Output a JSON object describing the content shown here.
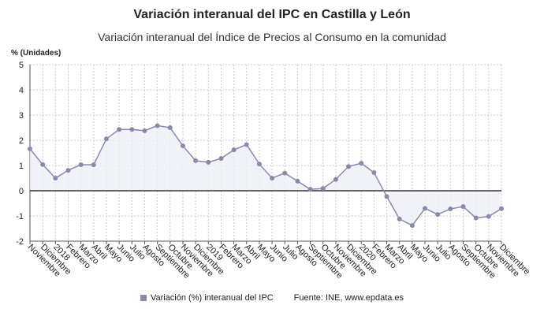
{
  "chart_data": {
    "type": "line",
    "title": "Variación interanual del IPC en Castilla y León",
    "subtitle": "Variación interanual del Índice de Precios al Consumo en la comunidad",
    "ylabel": "% (Unidades)",
    "xlabel": "",
    "ylim": [
      -2,
      5
    ],
    "yticks": [
      -2,
      -1,
      0,
      1,
      2,
      3,
      4,
      5
    ],
    "grid": true,
    "legend_position": "bottom",
    "categories": [
      "Noviembre",
      "Diciembre",
      "2018",
      "Febrero",
      "Marzo",
      "Abril",
      "Mayo",
      "Junio",
      "Julio",
      "Agosto",
      "Septiembre",
      "Octubre",
      "Noviembre",
      "Diciembre",
      "2019",
      "Febrero",
      "Marzo",
      "Abril",
      "Mayo",
      "Junio",
      "Julio",
      "Agosto",
      "Septiembre",
      "Octubre",
      "Noviembre",
      "Diciembre",
      "2020",
      "Febrero",
      "Marzo",
      "Abril",
      "Mayo",
      "Junio",
      "Julio",
      "Agosto",
      "Septiembre",
      "Octubre",
      "Noviembre",
      "Diciembre"
    ],
    "series": [
      {
        "name": "Variación (%) interanual del IPC",
        "color": "#8a8aa8",
        "values": [
          1.66,
          1.04,
          0.5,
          0.81,
          1.03,
          1.03,
          2.06,
          2.43,
          2.43,
          2.38,
          2.58,
          2.5,
          1.78,
          1.19,
          1.13,
          1.28,
          1.62,
          1.83,
          1.06,
          0.5,
          0.7,
          0.38,
          0.06,
          0.09,
          0.45,
          0.96,
          1.09,
          0.72,
          -0.23,
          -1.12,
          -1.38,
          -0.7,
          -0.94,
          -0.72,
          -0.63,
          -1.08,
          -1.02,
          -0.71
        ]
      }
    ],
    "source": "Fuente: INE, www.epdata.es"
  }
}
